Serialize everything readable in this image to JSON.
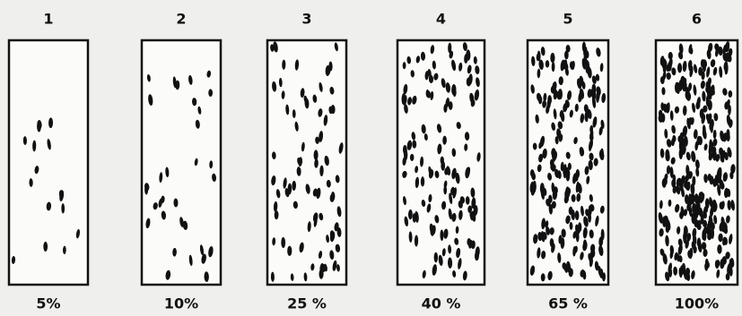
{
  "panels": [
    {
      "number": "1",
      "label": "5%"
    },
    {
      "number": "2",
      "label": "10%"
    },
    {
      "number": "3",
      "label": "25 %"
    },
    {
      "number": "4",
      "label": "40 %"
    },
    {
      "number": "5",
      "label": "65 %"
    },
    {
      "number": "6",
      "label": "100%"
    }
  ]
}
